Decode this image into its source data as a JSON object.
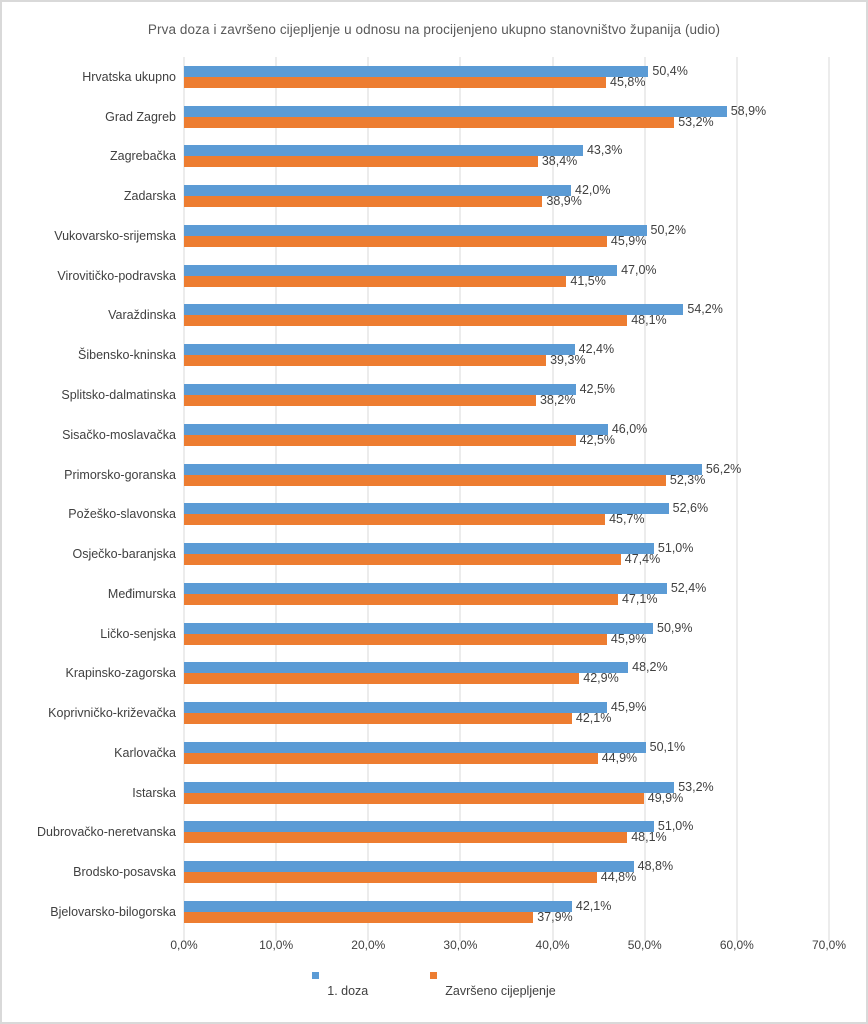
{
  "frame": {
    "background": "#ffffff",
    "border_color": "#d9d9d9"
  },
  "chart_data": {
    "type": "bar",
    "orientation": "horizontal",
    "title": "Prva doza i završeno cijepljenje u odnosu na procijenjeno ukupno stanovništvo županija (udio)",
    "categories": [
      "Hrvatska ukupno",
      "Grad Zagreb",
      "Zagrebačka",
      "Zadarska",
      "Vukovarsko-srijemska",
      "Virovitičko-podravska",
      "Varaždinska",
      "Šibensko-kninska",
      "Splitsko-dalmatinska",
      "Sisačko-moslavačka",
      "Primorsko-goranska",
      "Požeško-slavonska",
      "Osječko-baranjska",
      "Međimurska",
      "Ličko-senjska",
      "Krapinsko-zagorska",
      "Koprivničko-križevačka",
      "Karlovačka",
      "Istarska",
      "Dubrovačko-neretvanska",
      "Brodsko-posavska",
      "Bjelovarsko-bilogorska"
    ],
    "series": [
      {
        "name": "1. doza",
        "color": "#5b9bd5",
        "values": [
          50.4,
          58.9,
          43.3,
          42.0,
          50.2,
          47.0,
          54.2,
          42.4,
          42.5,
          46.0,
          56.2,
          52.6,
          51.0,
          52.4,
          50.9,
          48.2,
          45.9,
          50.1,
          53.2,
          51.0,
          48.8,
          42.1
        ],
        "labels": [
          "50,4%",
          "58,9%",
          "43,3%",
          "42,0%",
          "50,2%",
          "47,0%",
          "54,2%",
          "42,4%",
          "42,5%",
          "46,0%",
          "56,2%",
          "52,6%",
          "51,0%",
          "52,4%",
          "50,9%",
          "48,2%",
          "45,9%",
          "50,1%",
          "53,2%",
          "51,0%",
          "48,8%",
          "42,1%"
        ]
      },
      {
        "name": "Završeno cijepljenje",
        "color": "#ed7d31",
        "values": [
          45.8,
          53.2,
          38.4,
          38.9,
          45.9,
          41.5,
          48.1,
          39.3,
          38.2,
          42.5,
          52.3,
          45.7,
          47.4,
          47.1,
          45.9,
          42.9,
          42.1,
          44.9,
          49.9,
          48.1,
          44.8,
          37.9
        ],
        "labels": [
          "45,8%",
          "53,2%",
          "38,4%",
          "38,9%",
          "45,9%",
          "41,5%",
          "48,1%",
          "39,3%",
          "38,2%",
          "42,5%",
          "52,3%",
          "45,7%",
          "47,4%",
          "47,1%",
          "45,9%",
          "42,9%",
          "42,1%",
          "44,9%",
          "49,9%",
          "48,1%",
          "44,8%",
          "37,9%"
        ]
      }
    ],
    "x_axis": {
      "min": 0,
      "max": 70,
      "tick_step": 10,
      "tick_labels": [
        "0,0%",
        "10,0%",
        "20,0%",
        "30,0%",
        "40,0%",
        "50,0%",
        "60,0%",
        "70,0%"
      ]
    },
    "grid": true,
    "gridline_color": "#d9d9d9",
    "legend_position": "bottom",
    "title_color": "#595959",
    "label_color": "#404040"
  }
}
